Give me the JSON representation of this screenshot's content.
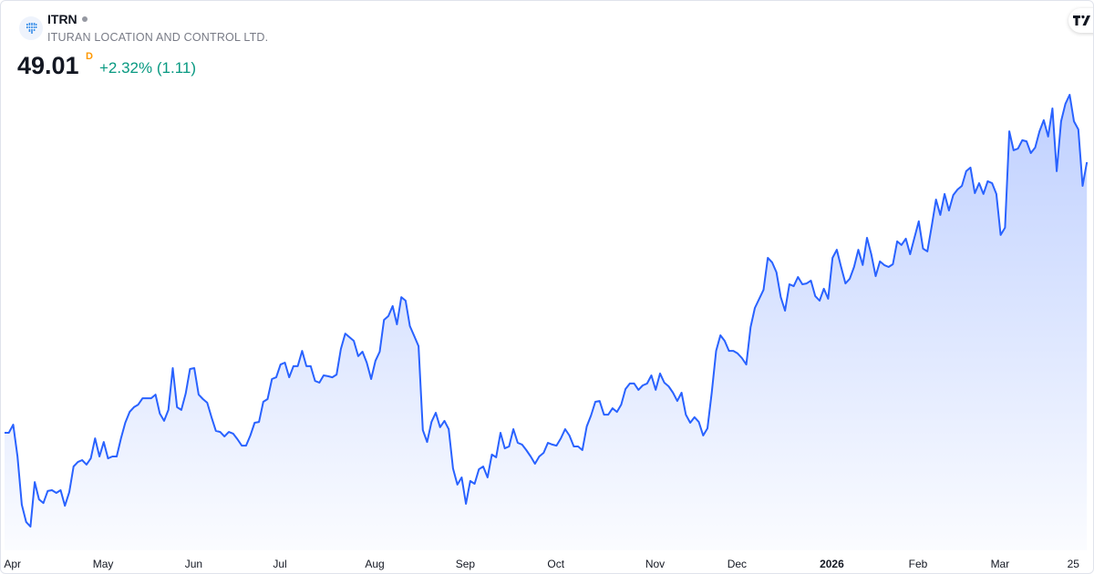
{
  "header": {
    "symbol": "ITRN",
    "company": "ITURAN LOCATION AND CONTROL LTD.",
    "price": "49.01",
    "interval": "D",
    "change": "+2.32% (1.11)",
    "market_status_icon": "dot-icon",
    "logo_icon": "ituran-logo-icon",
    "brand_icon": "tradingview-logo-icon"
  },
  "colors": {
    "line": "#2962ff",
    "positive": "#089981",
    "interval": "#ff9800",
    "text": "#131722",
    "muted": "#787b86"
  },
  "chart_data": {
    "type": "area",
    "title": "",
    "xlabel": "",
    "ylabel": "",
    "grid": false,
    "y_axis_shown": false,
    "x_ticks": [
      {
        "label": "Apr",
        "date": "2025-04-01",
        "bold": false
      },
      {
        "label": "May",
        "date": "2025-05-01",
        "bold": false
      },
      {
        "label": "Jun",
        "date": "2025-06-02",
        "bold": false
      },
      {
        "label": "Jul",
        "date": "2025-07-01",
        "bold": false
      },
      {
        "label": "Aug",
        "date": "2025-08-01",
        "bold": false
      },
      {
        "label": "Sep",
        "date": "2025-09-02",
        "bold": false
      },
      {
        "label": "Oct",
        "date": "2025-10-01",
        "bold": false
      },
      {
        "label": "Nov",
        "date": "2025-11-03",
        "bold": false
      },
      {
        "label": "Dec",
        "date": "2025-12-01",
        "bold": false
      },
      {
        "label": "2026",
        "date": "2026-01-02",
        "bold": true
      },
      {
        "label": "Feb",
        "date": "2026-02-02",
        "bold": false
      },
      {
        "label": "Mar",
        "date": "2026-03-02",
        "bold": false
      },
      {
        "label": "25",
        "date": "2026-03-25",
        "bold": false
      }
    ],
    "series": [
      {
        "month": "2025-03",
        "days": [
          31
        ],
        "close": [
          36.33
        ]
      },
      {
        "month": "2025-04",
        "days": [
          1,
          2,
          3,
          4,
          7,
          8,
          9,
          10,
          11,
          14,
          15,
          16,
          17,
          21,
          22,
          23,
          24,
          25,
          28,
          29,
          30
        ],
        "close": [
          36.33,
          36.71,
          35.22,
          32.96,
          32.15,
          31.93,
          34.02,
          33.21,
          33.04,
          33.6,
          33.64,
          33.51,
          33.64,
          32.91,
          33.55,
          34.75,
          34.96,
          35.05,
          34.84,
          35.13,
          36.07
        ]
      },
      {
        "month": "2025-05",
        "days": [
          1,
          2,
          5,
          6,
          7,
          8,
          9,
          12,
          13,
          14,
          15,
          16,
          19,
          20,
          21,
          22,
          23,
          27,
          28,
          29,
          30
        ],
        "close": [
          35.22,
          35.9,
          35.13,
          35.22,
          35.22,
          36.07,
          36.8,
          37.31,
          37.53,
          37.65,
          37.95,
          37.95,
          37.95,
          38.12,
          37.23,
          36.89,
          37.4,
          39.36,
          37.53,
          37.4,
          38.17
        ]
      },
      {
        "month": "2025-06",
        "days": [
          2,
          3,
          4,
          5,
          6,
          9,
          10,
          11,
          12,
          13,
          16,
          17,
          18,
          20,
          23,
          24,
          25,
          26,
          27,
          30
        ],
        "close": [
          39.32,
          39.36,
          38.12,
          37.91,
          37.74,
          37.06,
          36.42,
          36.37,
          36.16,
          36.37,
          36.29,
          36.03,
          35.73,
          35.73,
          36.2,
          36.8,
          36.84,
          37.78,
          37.91,
          38.85
        ]
      },
      {
        "month": "2025-07",
        "days": [
          1,
          2,
          3,
          7,
          8,
          9,
          10,
          11,
          14,
          15,
          16,
          17,
          18,
          21,
          22,
          23,
          24,
          25,
          28,
          29,
          30,
          31
        ],
        "close": [
          38.93,
          39.53,
          39.62,
          38.93,
          39.45,
          39.45,
          40.17,
          39.45,
          39.45,
          38.76,
          38.68,
          39.02,
          38.98,
          38.93,
          39.06,
          40.26,
          40.98,
          40.81,
          40.64,
          39.92,
          40.13,
          39.62
        ]
      },
      {
        "month": "2025-08",
        "days": [
          1,
          4,
          5,
          6,
          7,
          8,
          11,
          12,
          13,
          14,
          15,
          18,
          19,
          20,
          21,
          22,
          25,
          26,
          27,
          28,
          29
        ],
        "close": [
          38.85,
          39.7,
          40.13,
          41.62,
          41.8,
          42.27,
          41.41,
          42.69,
          42.52,
          41.33,
          40.86,
          40.39,
          36.46,
          35.9,
          36.84,
          37.27,
          36.59,
          36.89,
          36.5,
          34.66,
          33.9
        ]
      },
      {
        "month": "2025-09",
        "days": [
          2,
          3,
          4,
          5,
          8,
          9,
          10,
          11,
          12,
          15,
          16,
          17,
          18,
          19,
          22,
          23,
          24,
          25,
          26,
          29,
          30
        ],
        "close": [
          34.24,
          33.0,
          34.07,
          33.94,
          34.62,
          34.75,
          34.24,
          35.31,
          35.18,
          36.33,
          35.6,
          35.69,
          36.5,
          35.86,
          35.78,
          35.52,
          35.22,
          34.88,
          35.22,
          35.39,
          35.86
        ]
      },
      {
        "month": "2025-10",
        "days": [
          1,
          2,
          3,
          6,
          7,
          8,
          9,
          10,
          13,
          14,
          15,
          16,
          17,
          20,
          21,
          22,
          23,
          24,
          27,
          28,
          29,
          30,
          31
        ],
        "close": [
          35.78,
          35.73,
          36.07,
          36.5,
          36.2,
          35.69,
          35.69,
          35.52,
          36.63,
          37.14,
          37.78,
          37.82,
          37.18,
          37.18,
          37.48,
          37.31,
          37.65,
          38.38,
          38.64,
          38.64,
          38.34,
          38.55,
          38.64
        ]
      },
      {
        "month": "2025-11",
        "days": [
          3,
          4,
          5,
          6,
          7,
          10,
          11,
          12,
          13,
          14,
          17,
          18,
          19,
          20,
          21,
          24,
          25,
          26,
          28
        ],
        "close": [
          39.02,
          38.34,
          39.11,
          38.68,
          38.51,
          38.21,
          37.82,
          38.21,
          37.18,
          36.8,
          37.06,
          36.84,
          36.2,
          36.54,
          38.21,
          40.17,
          40.9,
          40.64,
          40.17
        ]
      },
      {
        "month": "2025-12",
        "days": [
          1,
          2,
          3,
          4,
          5,
          8,
          9,
          10,
          11,
          12,
          15,
          16,
          17,
          18,
          19,
          22,
          23,
          24,
          26,
          29,
          30,
          31
        ],
        "close": [
          40.17,
          40.05,
          39.83,
          39.53,
          41.28,
          42.18,
          42.61,
          43.03,
          44.53,
          44.32,
          43.85,
          42.69,
          42.05,
          43.29,
          43.2,
          43.63,
          43.29,
          43.33,
          43.46,
          42.74,
          42.52,
          43.08
        ]
      },
      {
        "month": "2026-01",
        "days": [
          2,
          5,
          6,
          7,
          8,
          9,
          12,
          13,
          14,
          15,
          16,
          20,
          21,
          22,
          23,
          26,
          27,
          28,
          29,
          30
        ],
        "close": [
          42.61,
          44.53,
          44.91,
          44.1,
          43.33,
          43.55,
          44.1,
          44.91,
          44.19,
          45.47,
          44.7,
          43.67,
          44.36,
          44.19,
          44.1,
          44.23,
          45.3,
          45.13,
          45.43,
          44.7
        ]
      },
      {
        "month": "2026-02",
        "days": [
          2,
          3,
          4,
          5,
          6,
          9,
          10,
          11,
          12,
          13,
          17,
          18,
          19,
          20,
          23,
          24,
          25,
          26,
          27
        ],
        "close": [
          45.47,
          46.24,
          44.96,
          44.83,
          46.02,
          47.26,
          46.54,
          47.52,
          46.75,
          47.47,
          47.73,
          47.9,
          48.59,
          48.76,
          47.56,
          48.03,
          47.52,
          48.12,
          48.03
        ]
      },
      {
        "month": "2026-03",
        "days": [
          2,
          3,
          4,
          5,
          6,
          9,
          10,
          11,
          12,
          13,
          16,
          17,
          18,
          19,
          20,
          23,
          24,
          25,
          26,
          27,
          30,
          31
        ],
        "close": [
          47.52,
          45.6,
          45.94,
          50.46,
          49.57,
          49.65,
          50.04,
          49.99,
          49.44,
          49.7,
          50.46,
          50.98,
          50.21,
          51.53,
          48.59,
          50.93,
          51.74,
          52.17,
          50.93,
          50.55,
          47.9,
          49.01
        ]
      }
    ]
  }
}
